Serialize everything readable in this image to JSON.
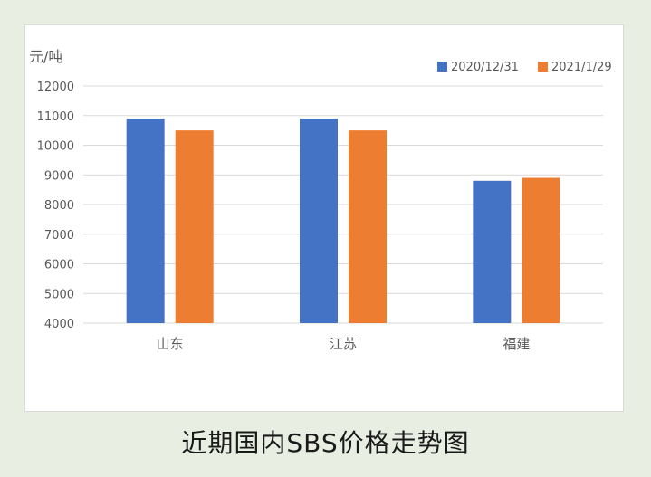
{
  "caption": "近期国内SBS价格走势图",
  "chart_data": {
    "type": "bar",
    "title": "",
    "unit_label": "元/吨",
    "xlabel": "",
    "ylabel": "元/吨",
    "categories": [
      "山东",
      "江苏",
      "福建"
    ],
    "series": [
      {
        "name": "2020/12/31",
        "color": "#4472c4",
        "values": [
          10900,
          10900,
          8800
        ]
      },
      {
        "name": "2021/1/29",
        "color": "#ed7d31",
        "values": [
          10500,
          10500,
          8900
        ]
      }
    ],
    "ylim": [
      4000,
      12000
    ],
    "yticks": [
      4000,
      5000,
      6000,
      7000,
      8000,
      9000,
      10000,
      11000,
      12000
    ],
    "grid": true,
    "legend_position": "top-right",
    "gridline_color": "#d9d9d9"
  }
}
